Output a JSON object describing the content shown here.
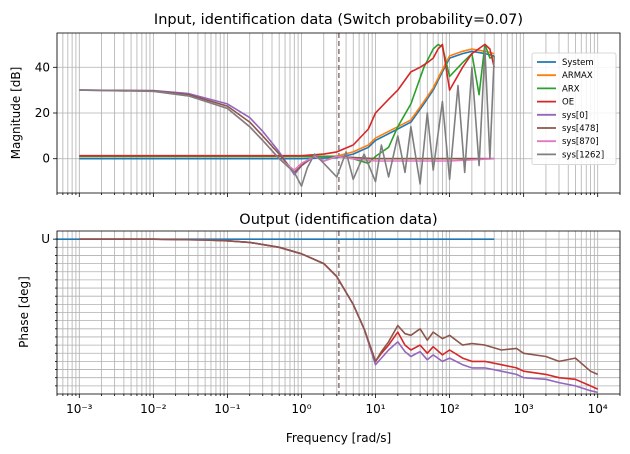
{
  "colors": {
    "System": "#1f77b4",
    "ARMAX": "#ff7f0e",
    "ARX": "#2ca02c",
    "OE": "#d62728",
    "sys[0]": "#9467bd",
    "sys[478]": "#8c564b",
    "sys[870]": "#e377c2",
    "sys[1262]": "#7f7f7f",
    "crossover": "#8c6d6d"
  },
  "chart_data": [
    {
      "type": "line",
      "title": "Input, identification data (Switch probability=0.07)",
      "xlabel": "",
      "ylabel": "Magnitude [dB]",
      "xscale": "log",
      "xlim": [
        0.0005,
        20000
      ],
      "ylim": [
        -15,
        55
      ],
      "yticks": [
        0,
        20,
        40
      ],
      "ytick_labels": [
        "0",
        "20",
        "40"
      ],
      "grid": true,
      "legend_position": "right",
      "vline_x": 3.2,
      "series": [
        {
          "name": "System",
          "x": [
            0.001,
            1,
            3,
            5,
            8,
            10,
            20,
            30,
            45,
            60,
            80,
            100,
            150,
            200,
            300,
            400
          ],
          "y": [
            0,
            0,
            0.5,
            2,
            5,
            8,
            13,
            16,
            24,
            30,
            38,
            44,
            46,
            47,
            46,
            45
          ]
        },
        {
          "name": "ARMAX",
          "x": [
            0.001,
            1,
            3,
            5,
            8,
            10,
            20,
            30,
            45,
            60,
            80,
            100,
            150,
            200,
            300,
            400
          ],
          "y": [
            1,
            1,
            1.2,
            3,
            6,
            9,
            14,
            17,
            25,
            31,
            39,
            45,
            47,
            48,
            47,
            46
          ]
        },
        {
          "name": "ARX",
          "x": [
            0.001,
            1,
            3,
            5,
            8,
            10,
            15,
            20,
            30,
            45,
            60,
            70,
            80,
            100,
            150,
            200,
            250,
            300,
            350,
            400
          ],
          "y": [
            1,
            1,
            1,
            0,
            -2,
            1,
            5,
            14,
            24,
            40,
            48,
            50,
            49,
            36,
            42,
            46,
            28,
            50,
            44,
            45
          ]
        },
        {
          "name": "OE",
          "x": [
            0.001,
            1,
            2,
            3,
            5,
            8,
            10,
            15,
            20,
            30,
            40,
            50,
            60,
            70,
            80,
            100,
            150,
            200,
            300,
            350,
            400
          ],
          "y": [
            1.3,
            1.3,
            2,
            3,
            6,
            13,
            20,
            26,
            30,
            38,
            40,
            42,
            44,
            48,
            50,
            30,
            40,
            46,
            50,
            48,
            40
          ]
        },
        {
          "name": "sys[0]",
          "x": [
            0.001,
            0.01,
            0.03,
            0.1,
            0.2,
            0.3,
            0.5,
            0.8,
            1,
            1.5,
            2,
            3,
            5,
            10,
            100,
            400
          ],
          "y": [
            30,
            29.8,
            28.5,
            24,
            18,
            12,
            3,
            -7,
            -3,
            1,
            -1,
            1,
            0.5,
            0,
            0,
            0
          ]
        },
        {
          "name": "sys[478]",
          "x": [
            0.001,
            0.01,
            0.03,
            0.1,
            0.2,
            0.3,
            0.5,
            0.8,
            1,
            1.5,
            2,
            3,
            5,
            10,
            100,
            400
          ],
          "y": [
            30,
            29.7,
            28,
            23,
            16,
            10,
            2,
            -6,
            -3,
            1.5,
            -1,
            1,
            0.5,
            0,
            0,
            0
          ]
        },
        {
          "name": "sys[870]",
          "x": [
            0.001,
            0.01,
            0.03,
            0.1,
            0.2,
            0.3,
            0.5,
            0.8,
            1,
            1.5,
            2,
            3,
            5,
            10,
            100,
            400
          ],
          "y": [
            30,
            29.5,
            27.5,
            22,
            14,
            8,
            0,
            -5,
            -2,
            1,
            -1,
            1,
            0,
            -1,
            -1,
            0
          ]
        },
        {
          "name": "sys[1262]",
          "x": [
            0.001,
            0.01,
            0.03,
            0.1,
            0.2,
            0.3,
            0.5,
            0.8,
            1,
            1.2,
            1.5,
            2,
            3,
            4,
            5,
            7,
            10,
            12,
            15,
            20,
            25,
            30,
            40,
            50,
            60,
            80,
            100,
            130,
            160,
            200,
            250,
            300,
            350,
            400
          ],
          "y": [
            30,
            29.5,
            27.5,
            22,
            14,
            8,
            0,
            -6,
            -12,
            -4,
            2,
            -2,
            -8,
            3,
            -9,
            2,
            -10,
            6,
            -8,
            10,
            -6,
            14,
            -11,
            20,
            -5,
            25,
            -9,
            32,
            -6,
            40,
            -3,
            48,
            0,
            45
          ]
        }
      ]
    },
    {
      "type": "line",
      "title": "Output (identification data)",
      "xlabel": "Frequency [rad/s]",
      "ylabel": "Phase [deg]",
      "xscale": "log",
      "xlim": [
        0.0005,
        20000
      ],
      "ylim": [
        0,
        1
      ],
      "yticks": [
        0.95
      ],
      "ytick_labels": [
        "U"
      ],
      "xticks": [
        0.001,
        0.01,
        0.1,
        1,
        10,
        100,
        1000,
        10000
      ],
      "xtick_labels": [
        "10⁻³",
        "10⁻²",
        "10⁻¹",
        "10⁰",
        "10¹",
        "10²",
        "10³",
        "10⁴"
      ],
      "grid": true,
      "vline_x": 3.2,
      "series": [
        {
          "name": "System",
          "x": [
            0.0005,
            400
          ],
          "y": [
            0.95,
            0.95
          ]
        },
        {
          "name": "OE",
          "x": [
            0.001,
            0.01,
            0.05,
            0.1,
            0.2,
            0.5,
            1,
            2,
            3,
            5,
            7,
            10,
            12,
            15,
            20,
            25,
            30,
            40,
            50,
            60,
            80,
            100,
            150,
            200,
            300,
            500,
            800,
            1000,
            2000,
            3000,
            5000,
            8000,
            10000
          ],
          "y": [
            0.95,
            0.95,
            0.945,
            0.94,
            0.93,
            0.9,
            0.86,
            0.8,
            0.72,
            0.55,
            0.4,
            0.2,
            0.25,
            0.3,
            0.38,
            0.3,
            0.27,
            0.3,
            0.25,
            0.29,
            0.24,
            0.27,
            0.22,
            0.2,
            0.2,
            0.18,
            0.16,
            0.14,
            0.12,
            0.1,
            0.09,
            0.05,
            0.03
          ]
        },
        {
          "name": "sys[0]",
          "x": [
            0.001,
            0.01,
            0.05,
            0.1,
            0.2,
            0.5,
            1,
            2,
            3,
            5,
            7,
            10,
            12,
            15,
            20,
            25,
            30,
            40,
            50,
            60,
            80,
            100,
            150,
            200,
            300,
            500,
            800,
            1000,
            2000,
            3000,
            5000,
            8000,
            10000
          ],
          "y": [
            0.95,
            0.95,
            0.945,
            0.94,
            0.93,
            0.9,
            0.86,
            0.8,
            0.72,
            0.55,
            0.4,
            0.18,
            0.22,
            0.27,
            0.32,
            0.26,
            0.23,
            0.26,
            0.21,
            0.24,
            0.2,
            0.22,
            0.18,
            0.16,
            0.16,
            0.14,
            0.12,
            0.1,
            0.09,
            0.07,
            0.05,
            0.02,
            0.01
          ]
        },
        {
          "name": "sys[478]",
          "x": [
            0.001,
            0.01,
            0.05,
            0.1,
            0.2,
            0.5,
            1,
            2,
            3,
            5,
            7,
            10,
            12,
            15,
            20,
            25,
            30,
            40,
            50,
            60,
            80,
            100,
            150,
            200,
            300,
            500,
            800,
            1000,
            2000,
            3000,
            5000,
            8000,
            10000
          ],
          "y": [
            0.95,
            0.95,
            0.945,
            0.94,
            0.93,
            0.9,
            0.86,
            0.8,
            0.72,
            0.55,
            0.4,
            0.2,
            0.26,
            0.32,
            0.42,
            0.37,
            0.36,
            0.4,
            0.33,
            0.38,
            0.34,
            0.36,
            0.3,
            0.31,
            0.3,
            0.27,
            0.28,
            0.25,
            0.23,
            0.2,
            0.22,
            0.14,
            0.12
          ]
        }
      ]
    }
  ]
}
